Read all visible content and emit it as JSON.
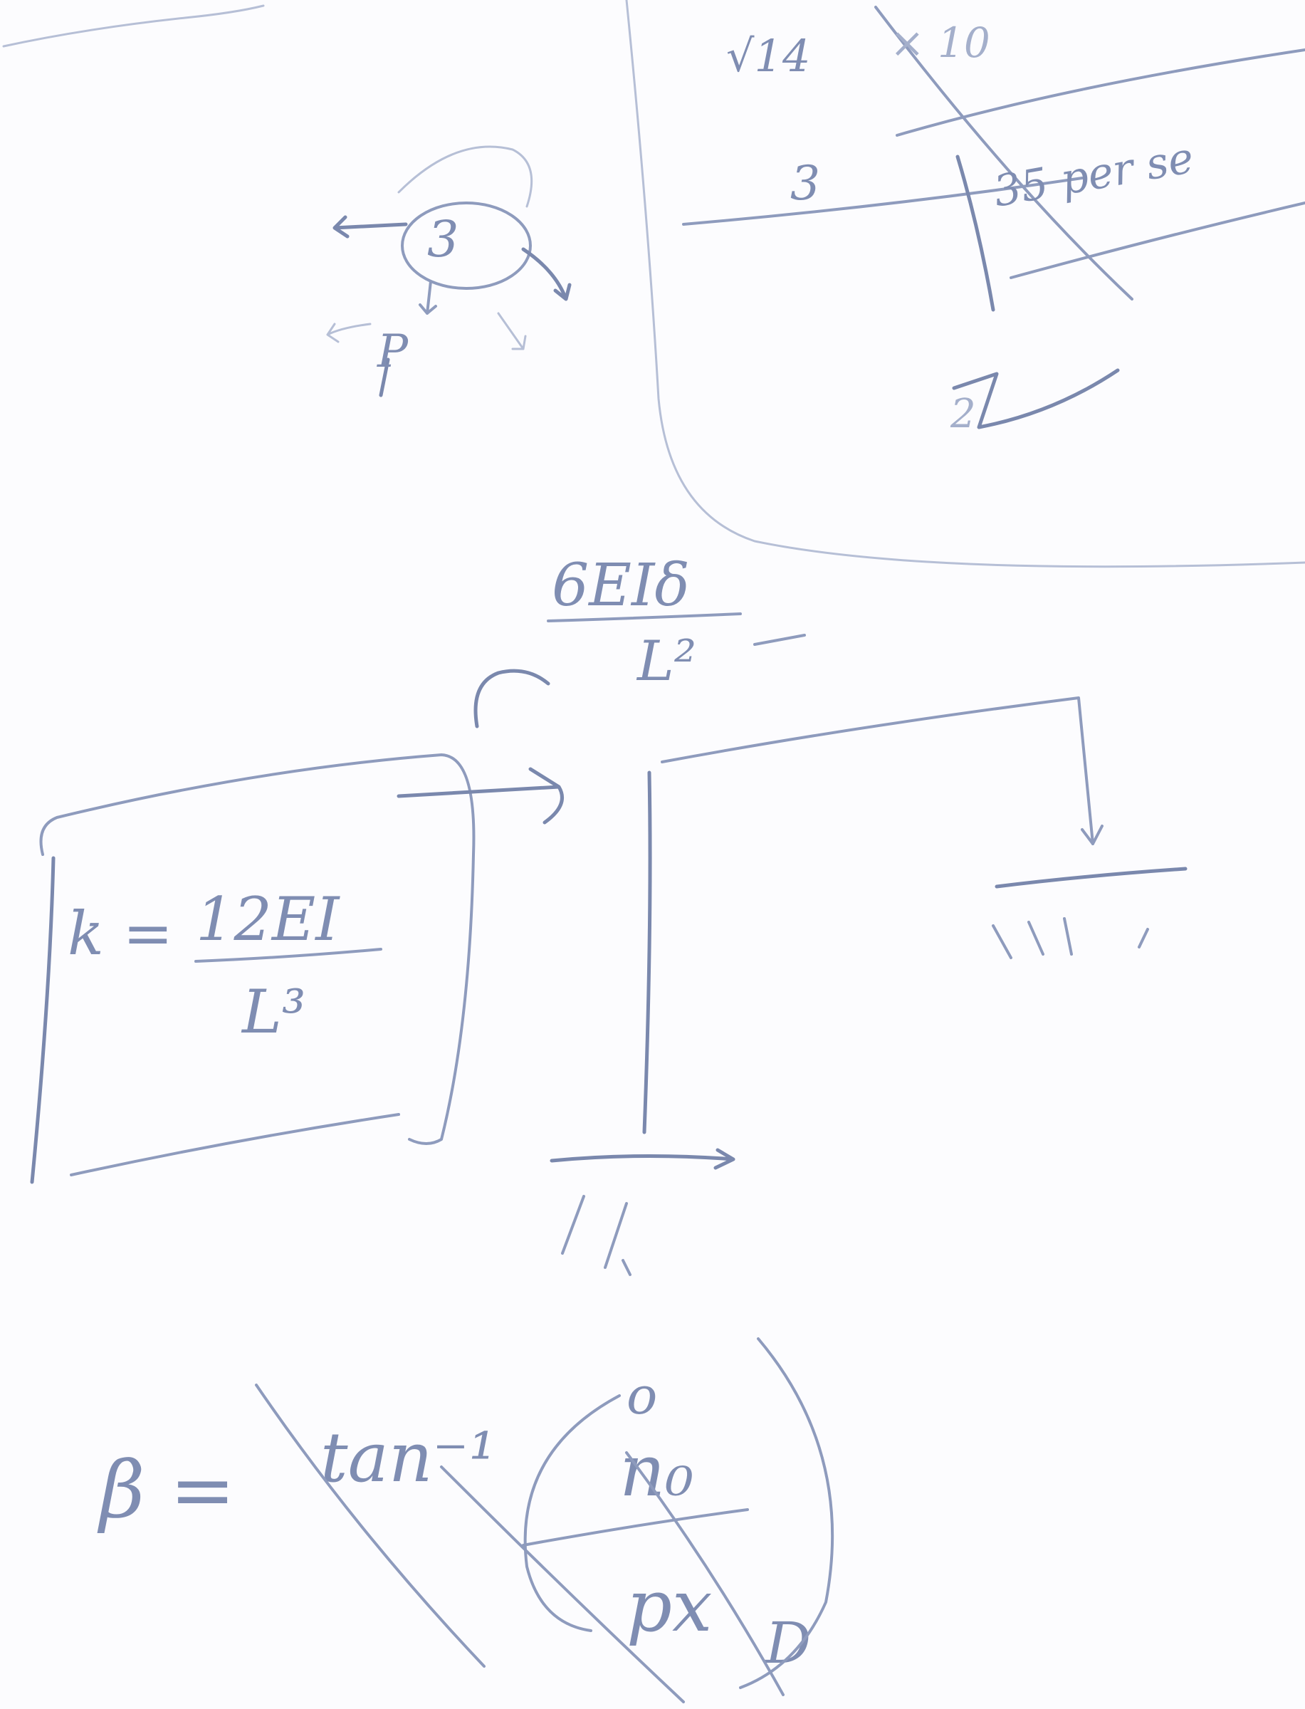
{
  "sheet": {
    "paper_color": "#fcfcfe",
    "pencil_color": "#8e9bbd"
  },
  "top_right_notes": {
    "line1_left": "√14",
    "line1_right": "× 10",
    "line2_left": "3",
    "line2_right": "35 per se",
    "line3": "2"
  },
  "top_left_sketch": {
    "center_label": "3",
    "lower_label": "P"
  },
  "moment_expression": {
    "numerator": "6EIδ",
    "denominator": "L²"
  },
  "stiffness_box": {
    "lhs": "k =",
    "numerator": "12EI",
    "denominator": "L³"
  },
  "angle_formula": {
    "lhs": "β =",
    "function": "tan⁻¹",
    "numerator": "n₀",
    "denominator": "px",
    "marks": {
      "numerator_circle": "o",
      "denominator_tail": "D"
    }
  }
}
